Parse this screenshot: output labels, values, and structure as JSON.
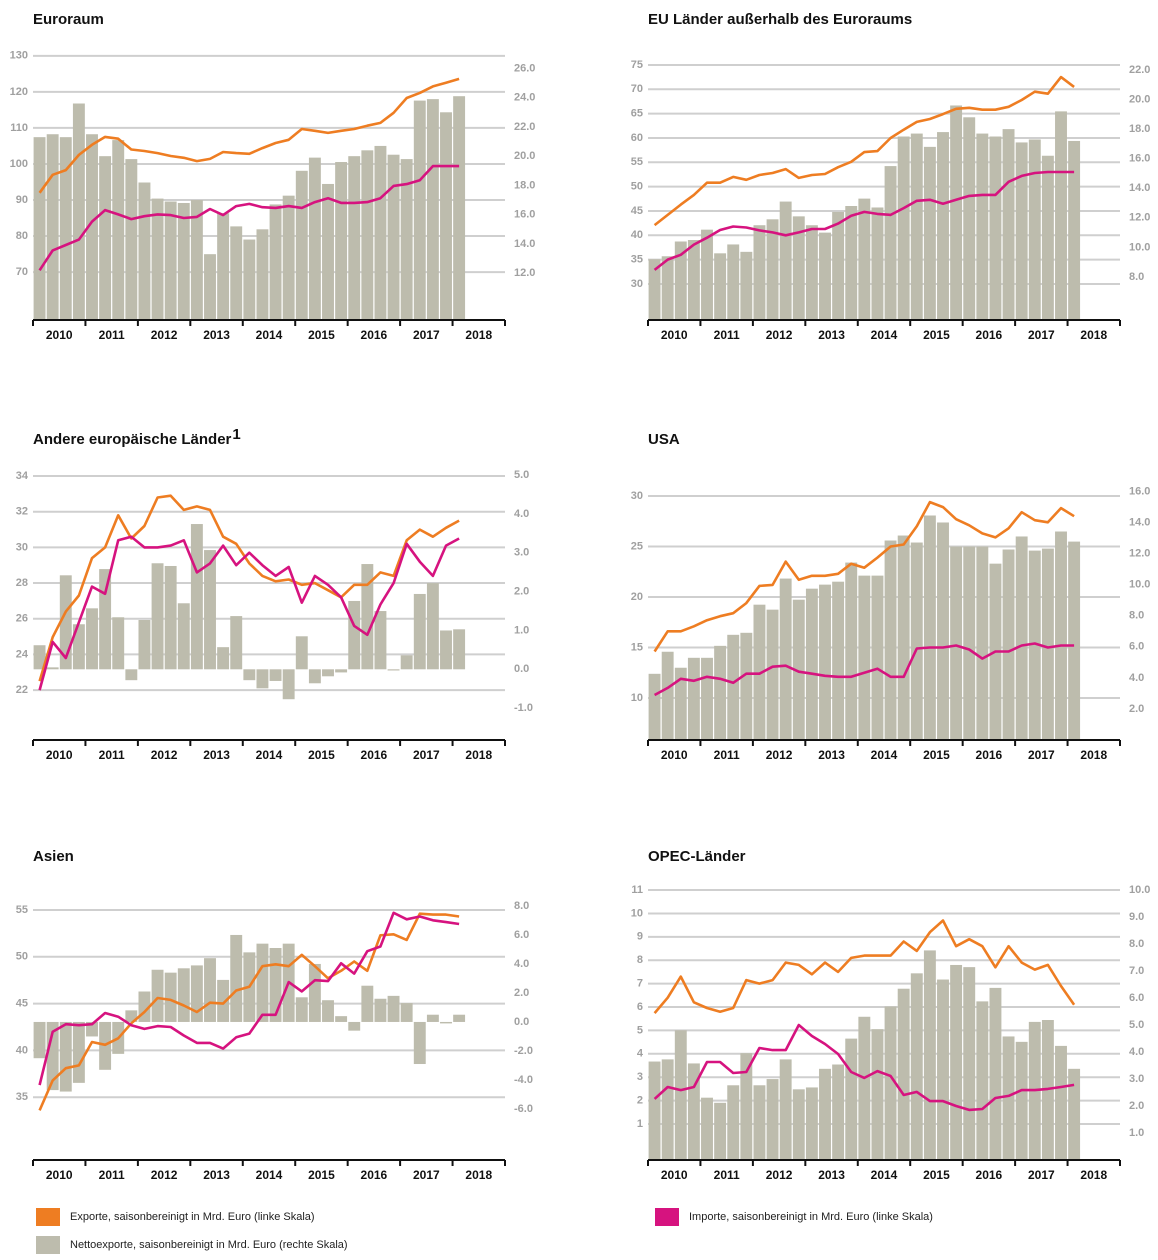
{
  "legend": [
    {
      "name": "Exporte, saisonbereinigt in Mrd. Euro (linke Skala)",
      "color": "#ee7d22"
    },
    {
      "name": "Importe, saisonbereinigt in Mrd. Euro (linke Skala)",
      "color": "#d6137f"
    },
    {
      "name": "Nettoexporte, saisonbereinigt in Mrd. Euro (rechte Skala)",
      "color": "#bdbcad"
    }
  ],
  "chart_data": [
    {
      "type": "bar-line",
      "title": "Euroraum",
      "x_labels": [
        "2010",
        "2011",
        "2012",
        "2013",
        "2014",
        "2015",
        "2016",
        "2017",
        "2018"
      ],
      "ylim": [
        56.7,
        133
      ],
      "yticks": [
        70,
        80,
        90,
        100,
        110,
        120,
        130
      ],
      "y2lim": [
        8.8,
        27.6
      ],
      "y2ticks": [
        {
          "value": 12,
          "label": "12.0"
        },
        {
          "value": 14,
          "label": "14.0"
        },
        {
          "value": 16,
          "label": "16.0"
        },
        {
          "value": 18,
          "label": "18.0"
        },
        {
          "value": 20,
          "label": "20.0"
        },
        {
          "value": 22,
          "label": "22.0"
        },
        {
          "value": 24,
          "label": "24.0"
        },
        {
          "value": 26,
          "label": "26.0"
        }
      ],
      "grid": true,
      "series": [
        {
          "axis": "y",
          "values": [
            92,
            97,
            98.3,
            102.5,
            105.3,
            107.5,
            107,
            104,
            103.6,
            103,
            102.2,
            101.7,
            100.8,
            101.4,
            103.3,
            103,
            102.8,
            104.4,
            105.8,
            106.7,
            109.7,
            109.2,
            108.6,
            109.2,
            109.7,
            110.6,
            111.4,
            114.2,
            118.3,
            119.7,
            121.5,
            122.5,
            123.6
          ]
        },
        {
          "axis": "y",
          "values": [
            70.5,
            76,
            77.5,
            79,
            84,
            87.2,
            86,
            84.7,
            85.5,
            86,
            85.8,
            85,
            85.3,
            87.5,
            85.8,
            88.3,
            88.9,
            88,
            87.8,
            88.3,
            87.8,
            89.4,
            90.5,
            89.2,
            89.2,
            89.4,
            90.5,
            93.9,
            94.4,
            95.5,
            99.4,
            99.4,
            99.4
          ]
        },
        {
          "axis": "y2",
          "values": [
            21.3,
            21.5,
            21.3,
            23.6,
            21.5,
            20,
            21.1,
            19.8,
            18.2,
            17.1,
            16.9,
            16.8,
            17,
            13.3,
            16.1,
            15.2,
            14.3,
            15,
            16.7,
            17.3,
            19,
            19.9,
            18.1,
            19.6,
            20,
            20.4,
            20.7,
            20.1,
            19.8,
            23.8,
            23.9,
            23,
            24.1
          ]
        }
      ]
    },
    {
      "type": "bar-line",
      "title": "EU Länder außerhalb des Euroraums",
      "x_labels": [
        "2010",
        "2011",
        "2012",
        "2013",
        "2014",
        "2015",
        "2016",
        "2017",
        "2018"
      ],
      "ylim": [
        22.6,
        79.1
      ],
      "yticks": [
        30,
        35,
        40,
        45,
        50,
        55,
        60,
        65,
        70,
        75
      ],
      "y2lim": [
        5.09,
        23.69
      ],
      "y2ticks": [
        {
          "value": 8,
          "label": "8.0"
        },
        {
          "value": 10,
          "label": "10.0"
        },
        {
          "value": 12,
          "label": "12.0"
        },
        {
          "value": 14,
          "label": "14.0"
        },
        {
          "value": 16,
          "label": "16.0"
        },
        {
          "value": 18,
          "label": "18.0"
        },
        {
          "value": 20,
          "label": "20.0"
        },
        {
          "value": 22,
          "label": "22.0"
        }
      ],
      "grid": true,
      "series": [
        {
          "axis": "y",
          "values": [
            42.1,
            44.2,
            46.3,
            48.3,
            50.8,
            50.8,
            52,
            51.4,
            52.4,
            52.8,
            53.6,
            51.8,
            52.4,
            52.6,
            54,
            55.1,
            57.1,
            57.3,
            60,
            61.7,
            63.3,
            63.9,
            64.9,
            66,
            66.2,
            65.8,
            65.8,
            66.4,
            67.8,
            69.5,
            69.1,
            72.5,
            70.5
          ]
        },
        {
          "axis": "y",
          "values": [
            32.9,
            35,
            36,
            38.1,
            39.5,
            41.1,
            41.8,
            41.6,
            41,
            40.6,
            40,
            40.6,
            41.3,
            41.3,
            42.4,
            44,
            44.8,
            44.4,
            44.2,
            45.6,
            47.1,
            47.3,
            46.5,
            47.3,
            48.1,
            48.3,
            48.3,
            51,
            52.2,
            52.8,
            53,
            53,
            53
          ]
        },
        {
          "axis": "y2",
          "values": [
            9.2,
            9.4,
            10.4,
            10.5,
            11.2,
            9.6,
            10.2,
            9.7,
            11.5,
            11.9,
            13.1,
            12.1,
            11.5,
            11,
            12.4,
            12.8,
            13.3,
            12.7,
            15.5,
            17.5,
            17.7,
            16.8,
            17.8,
            19.6,
            18.8,
            17.7,
            17.5,
            18,
            17.1,
            17.3,
            16.2,
            19.2,
            17.2
          ]
        }
      ]
    },
    {
      "type": "bar-line",
      "title": "Andere europäische Länder",
      "title_note": "1",
      "x_labels": [
        "2010",
        "2011",
        "2012",
        "2013",
        "2014",
        "2015",
        "2016",
        "2017",
        "2018"
      ],
      "ylim": [
        19.2,
        34.62
      ],
      "yticks": [
        22,
        24,
        26,
        28,
        30,
        32,
        34
      ],
      "y2lim": [
        -1.82,
        5.26
      ],
      "y2ticks": [
        {
          "value": -1,
          "label": "-1.0"
        },
        {
          "value": 0,
          "label": "0.0"
        },
        {
          "value": 1,
          "label": "1.0"
        },
        {
          "value": 2,
          "label": "2.0"
        },
        {
          "value": 3,
          "label": "3.0"
        },
        {
          "value": 4,
          "label": "4.0"
        },
        {
          "value": 5,
          "label": "5.0"
        }
      ],
      "grid": true,
      "series": [
        {
          "axis": "y",
          "values": [
            22.5,
            24.97,
            26.4,
            27.3,
            29.4,
            30,
            31.8,
            30.5,
            31.2,
            32.8,
            32.9,
            32.1,
            32.3,
            32.1,
            30.6,
            30.2,
            29.1,
            28.4,
            28.1,
            28.2,
            27.9,
            28,
            27.6,
            27.2,
            27.9,
            27.9,
            28.6,
            28.4,
            30.4,
            31,
            30.6,
            31.1,
            31.5
          ]
        },
        {
          "axis": "y",
          "values": [
            22,
            24.7,
            23.8,
            25.8,
            27.8,
            27.4,
            30.4,
            30.6,
            30,
            30,
            30.1,
            30.4,
            28.6,
            29.1,
            30.1,
            29,
            29.7,
            29,
            28.4,
            28.9,
            26.9,
            28.4,
            27.9,
            27.2,
            25.6,
            25.1,
            26.8,
            28,
            30.2,
            29.2,
            28.4,
            30.1,
            30.5
          ]
        },
        {
          "axis": "y2",
          "values": [
            0.62,
            0.05,
            2.42,
            1.16,
            1.57,
            2.58,
            1.34,
            -0.28,
            1.27,
            2.73,
            2.66,
            1.7,
            3.74,
            3.07,
            0.57,
            1.37,
            -0.28,
            -0.49,
            -0.3,
            -0.77,
            0.85,
            -0.36,
            -0.18,
            -0.08,
            1.76,
            2.71,
            1.5,
            -0.03,
            0.36,
            1.94,
            2.22,
            1.0,
            1.03
          ]
        }
      ]
    },
    {
      "type": "bar-line",
      "title": "USA",
      "x_labels": [
        "2010",
        "2011",
        "2012",
        "2013",
        "2014",
        "2015",
        "2016",
        "2017",
        "2018"
      ],
      "ylim": [
        5.84,
        33.07
      ],
      "yticks": [
        10,
        15,
        20,
        25,
        30
      ],
      "y2lim": [
        0,
        17.7
      ],
      "y2ticks": [
        {
          "value": 2,
          "label": "2.0"
        },
        {
          "value": 4,
          "label": "4.0"
        },
        {
          "value": 6,
          "label": "6.0"
        },
        {
          "value": 8,
          "label": "8.0"
        },
        {
          "value": 10,
          "label": "10.0"
        },
        {
          "value": 12,
          "label": "12.0"
        },
        {
          "value": 14,
          "label": "14.0"
        },
        {
          "value": 16,
          "label": "16.0"
        }
      ],
      "grid": true,
      "series": [
        {
          "axis": "y",
          "values": [
            14.6,
            16.6,
            16.6,
            17.1,
            17.7,
            18.1,
            18.4,
            19.4,
            21.1,
            21.2,
            23.5,
            21.7,
            22.1,
            22.1,
            22.3,
            23.3,
            22.9,
            23.9,
            25,
            25.2,
            27,
            29.4,
            28.9,
            27.7,
            27.1,
            26.3,
            25.9,
            26.8,
            28.4,
            27.6,
            27.4,
            28.8,
            28
          ]
        },
        {
          "axis": "y",
          "values": [
            10.3,
            11,
            11.9,
            11.7,
            12.1,
            11.9,
            11.5,
            12.4,
            12.4,
            13.1,
            13.2,
            12.6,
            12.4,
            12.2,
            12.1,
            12.1,
            12.5,
            12.9,
            12.1,
            12.1,
            14.9,
            15,
            15,
            15.2,
            14.8,
            13.9,
            14.6,
            14.6,
            15.2,
            15.4,
            15,
            15.2,
            15.2
          ]
        },
        {
          "axis": "y2",
          "values": [
            4.26,
            5.68,
            4.65,
            5.29,
            5.29,
            6.06,
            6.77,
            6.9,
            8.71,
            8.39,
            10.39,
            9.03,
            9.74,
            10,
            10.19,
            11.42,
            10.58,
            10.58,
            12.84,
            13.16,
            12.71,
            14.45,
            14,
            12.45,
            12.45,
            12.45,
            11.35,
            12.26,
            13.1,
            12.19,
            12.32,
            13.42,
            12.77
          ]
        }
      ]
    },
    {
      "type": "bar-line",
      "title": "Asien",
      "x_labels": [
        "2010",
        "2011",
        "2012",
        "2013",
        "2014",
        "2015",
        "2016",
        "2017",
        "2018"
      ],
      "ylim": [
        28.3,
        58.2
      ],
      "yticks": [
        35,
        40,
        45,
        50,
        55
      ],
      "y2lim": [
        -9.52,
        9.79
      ],
      "y2ticks": [
        {
          "value": -6,
          "label": "-6.0"
        },
        {
          "value": -4,
          "label": "-4.0"
        },
        {
          "value": -2,
          "label": "-2.0"
        },
        {
          "value": 0,
          "label": "0.0"
        },
        {
          "value": 2,
          "label": "2.0"
        },
        {
          "value": 4,
          "label": "4.0"
        },
        {
          "value": 6,
          "label": "6.0"
        },
        {
          "value": 8,
          "label": "8.0"
        }
      ],
      "grid": true,
      "series": [
        {
          "axis": "y",
          "values": [
            33.6,
            36.8,
            38.1,
            38.4,
            40.9,
            40.6,
            41.3,
            42.9,
            44.1,
            45.6,
            45.4,
            44.8,
            44.1,
            45.1,
            45,
            46.4,
            46.8,
            49,
            49.2,
            49,
            50.2,
            49,
            47.7,
            48.5,
            49.5,
            48.5,
            52.3,
            52.4,
            51.8,
            54.6,
            54.5,
            54.5,
            54.3
          ]
        },
        {
          "axis": "y",
          "values": [
            36.3,
            42,
            42.8,
            42.7,
            42.8,
            44,
            43.6,
            42.7,
            42.3,
            42.6,
            42.5,
            41.6,
            40.8,
            40.8,
            40.2,
            41.4,
            41.8,
            43.8,
            43.8,
            47.3,
            46.3,
            47.5,
            47.4,
            49.3,
            48.2,
            50.6,
            51.1,
            54.7,
            54,
            54.3,
            53.9,
            53.7,
            53.5
          ]
        },
        {
          "axis": "y2",
          "values": [
            -2.5,
            -4.7,
            -4.8,
            -4.2,
            -1,
            -3.3,
            -2.2,
            0.8,
            2.1,
            3.6,
            3.4,
            3.7,
            3.9,
            4.4,
            2.9,
            6,
            4.8,
            5.4,
            5.1,
            5.4,
            1.7,
            4,
            1.5,
            0.4,
            -0.6,
            2.5,
            1.6,
            1.8,
            1.3,
            -2.9,
            0.5,
            -0.1,
            0.5
          ]
        }
      ]
    },
    {
      "type": "bar-line",
      "title": "OPEC-Länder",
      "x_labels": [
        "2010",
        "2011",
        "2012",
        "2013",
        "2014",
        "2015",
        "2016",
        "2017",
        "2018"
      ],
      "ylim": [
        -0.54,
        11.43
      ],
      "yticks": [
        1,
        2,
        3,
        4,
        5,
        6,
        7,
        8,
        9,
        10,
        11
      ],
      "y2lim": [
        0,
        10.38
      ],
      "y2ticks": [
        {
          "value": 1,
          "label": "1.0"
        },
        {
          "value": 2,
          "label": "2.0"
        },
        {
          "value": 3,
          "label": "3.0"
        },
        {
          "value": 4,
          "label": "4.0"
        },
        {
          "value": 5,
          "label": "5.0"
        },
        {
          "value": 6,
          "label": "6.0"
        },
        {
          "value": 7,
          "label": "7.0"
        },
        {
          "value": 8,
          "label": "8.0"
        },
        {
          "value": 9,
          "label": "9.0"
        },
        {
          "value": 10,
          "label": "10.0"
        }
      ],
      "grid": true,
      "series": [
        {
          "axis": "y",
          "values": [
            5.74,
            6.4,
            7.3,
            6.2,
            5.96,
            5.8,
            5.96,
            7.15,
            7,
            7.15,
            7.9,
            7.8,
            7.4,
            7.9,
            7.5,
            8.1,
            8.2,
            8.2,
            8.2,
            8.8,
            8.4,
            9.2,
            9.7,
            8.6,
            8.9,
            8.6,
            7.7,
            8.6,
            7.9,
            7.6,
            7.8,
            6.9,
            6.1
          ]
        },
        {
          "axis": "y",
          "values": [
            2.07,
            2.58,
            2.45,
            2.58,
            3.65,
            3.65,
            3.18,
            3.22,
            4.25,
            4.16,
            4.16,
            5.23,
            4.76,
            4.42,
            3.99,
            3.22,
            2.97,
            3.26,
            3.05,
            2.24,
            2.37,
            1.98,
            1.98,
            1.77,
            1.6,
            1.64,
            2.11,
            2.2,
            2.45,
            2.45,
            2.5,
            2.58,
            2.67
          ]
        },
        {
          "axis": "y2",
          "values": [
            3.65,
            3.73,
            4.81,
            3.58,
            2.31,
            2.12,
            2.77,
            3.96,
            2.77,
            3,
            3.73,
            2.62,
            2.69,
            3.38,
            3.54,
            4.5,
            5.31,
            4.85,
            5.69,
            6.35,
            6.92,
            7.77,
            6.69,
            7.23,
            7.15,
            5.88,
            6.38,
            4.58,
            4.38,
            5.12,
            5.19,
            4.23,
            3.38
          ]
        }
      ]
    }
  ]
}
